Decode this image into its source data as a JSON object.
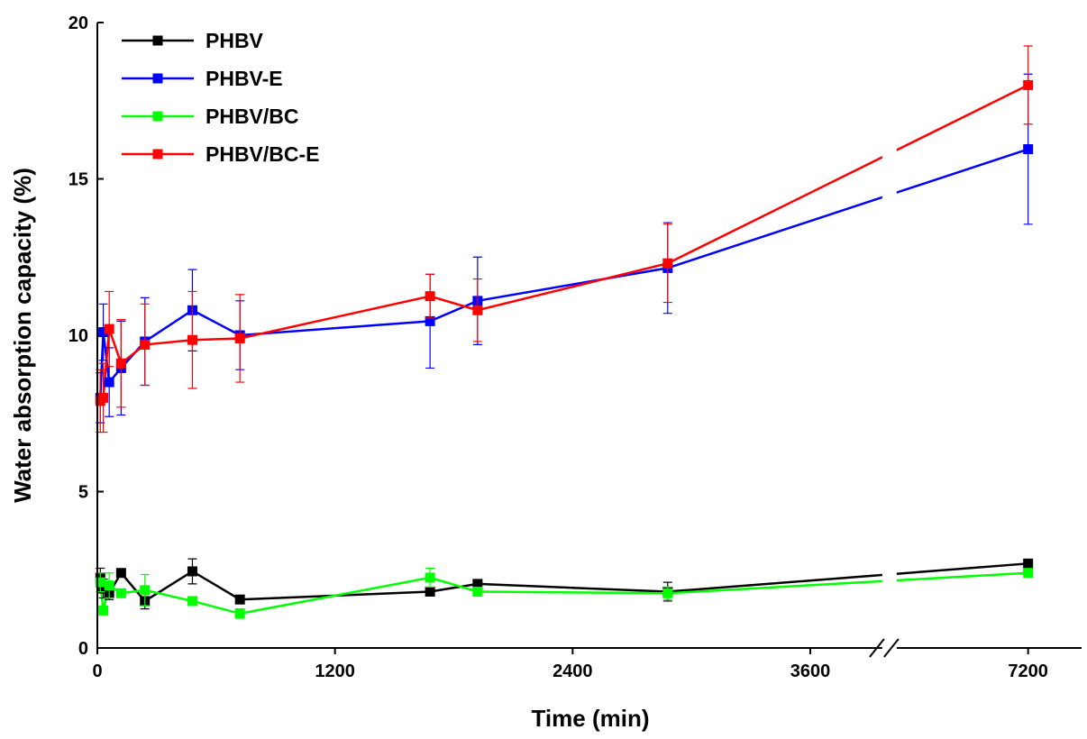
{
  "chart_data": {
    "type": "line",
    "xlabel": "Time (min)",
    "ylabel": "Water absorption capacity (%)",
    "x": [
      15,
      30,
      60,
      120,
      240,
      480,
      720,
      1680,
      1920,
      2880,
      7200
    ],
    "xlim": [
      0,
      7470
    ],
    "xbreak": [
      4000,
      6500
    ],
    "xticks": [
      0,
      1200,
      2400,
      3600,
      7200
    ],
    "ylim": [
      0,
      20
    ],
    "yticks": [
      0,
      5,
      10,
      15,
      20
    ],
    "legend": "upper left",
    "series": [
      {
        "name": "PHBV",
        "color": "#000000",
        "values": [
          2.25,
          1.9,
          1.75,
          2.4,
          1.5,
          2.45,
          1.55,
          1.8,
          2.05,
          1.8,
          2.7
        ],
        "errors": [
          0.3,
          0.3,
          0.2,
          0.1,
          0.25,
          0.4,
          0.1,
          0.1,
          0.1,
          0.3,
          0.1
        ]
      },
      {
        "name": "PHBV-E",
        "color": "#0000ff",
        "values": [
          8.0,
          10.1,
          8.5,
          8.95,
          9.8,
          10.8,
          10.0,
          10.45,
          11.1,
          12.15,
          15.95
        ],
        "errors": [
          0.8,
          0.9,
          1.1,
          1.5,
          1.4,
          1.3,
          1.1,
          1.5,
          1.4,
          1.45,
          2.4
        ]
      },
      {
        "name": "PHBV/BC",
        "color": "#00ff00",
        "values": [
          2.1,
          1.2,
          2.0,
          1.75,
          1.85,
          1.5,
          1.1,
          2.25,
          1.8,
          1.75,
          2.4
        ],
        "errors": [
          0.3,
          0.1,
          0.4,
          0.1,
          0.5,
          0.1,
          0.15,
          0.3,
          0.1,
          0.2,
          0.1
        ]
      },
      {
        "name": "PHBV/BC-E",
        "color": "#ff0000",
        "values": [
          7.9,
          8.0,
          10.2,
          9.1,
          9.7,
          9.85,
          9.9,
          11.25,
          10.8,
          12.3,
          18.0
        ],
        "errors": [
          1.0,
          1.1,
          1.2,
          1.4,
          1.3,
          1.55,
          1.4,
          0.7,
          1.0,
          1.25,
          1.25
        ]
      }
    ]
  }
}
